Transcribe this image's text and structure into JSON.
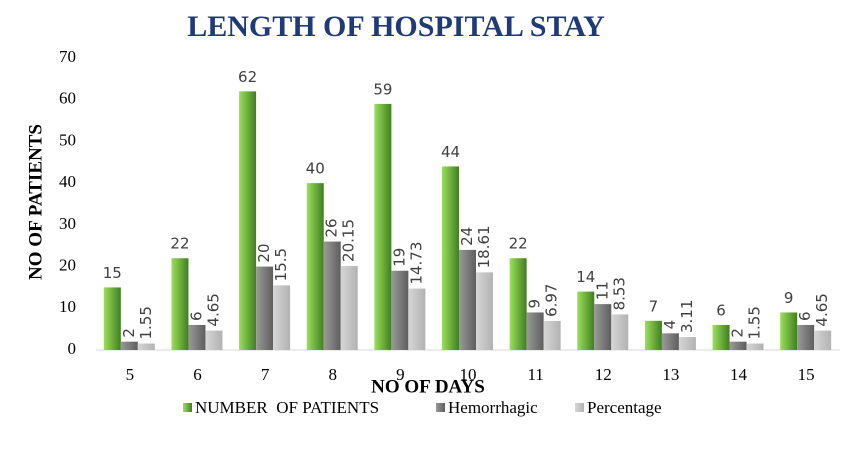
{
  "chart_data": {
    "type": "bar",
    "title": "LENGTH OF HOSPITAL STAY",
    "x_label": "NO OF DAYS",
    "y_label": "NO OF PATIENTS",
    "categories": [
      "5",
      "6",
      "7",
      "8",
      "9",
      "10",
      "11",
      "12",
      "13",
      "14",
      "15"
    ],
    "series": [
      {
        "name": "NUMBER  OF PATIENTS",
        "color": "#5ea832",
        "values": [
          15,
          22,
          62,
          40,
          59,
          44,
          22,
          14,
          7,
          6,
          9
        ]
      },
      {
        "name": "Hemorrhagic",
        "color": "#7b7b7b",
        "values": [
          2,
          6,
          20,
          26,
          19,
          24,
          9,
          11,
          4,
          2,
          6
        ]
      },
      {
        "name": "Percentage",
        "color": "#c4c4c4",
        "values": [
          1.55,
          4.65,
          15.5,
          20.15,
          14.73,
          18.61,
          6.97,
          8.53,
          3.11,
          1.55,
          4.65
        ]
      }
    ],
    "ylim": [
      0,
      70
    ],
    "yticks": [
      0,
      10,
      20,
      30,
      40,
      50,
      60,
      70
    ],
    "grid": false
  }
}
